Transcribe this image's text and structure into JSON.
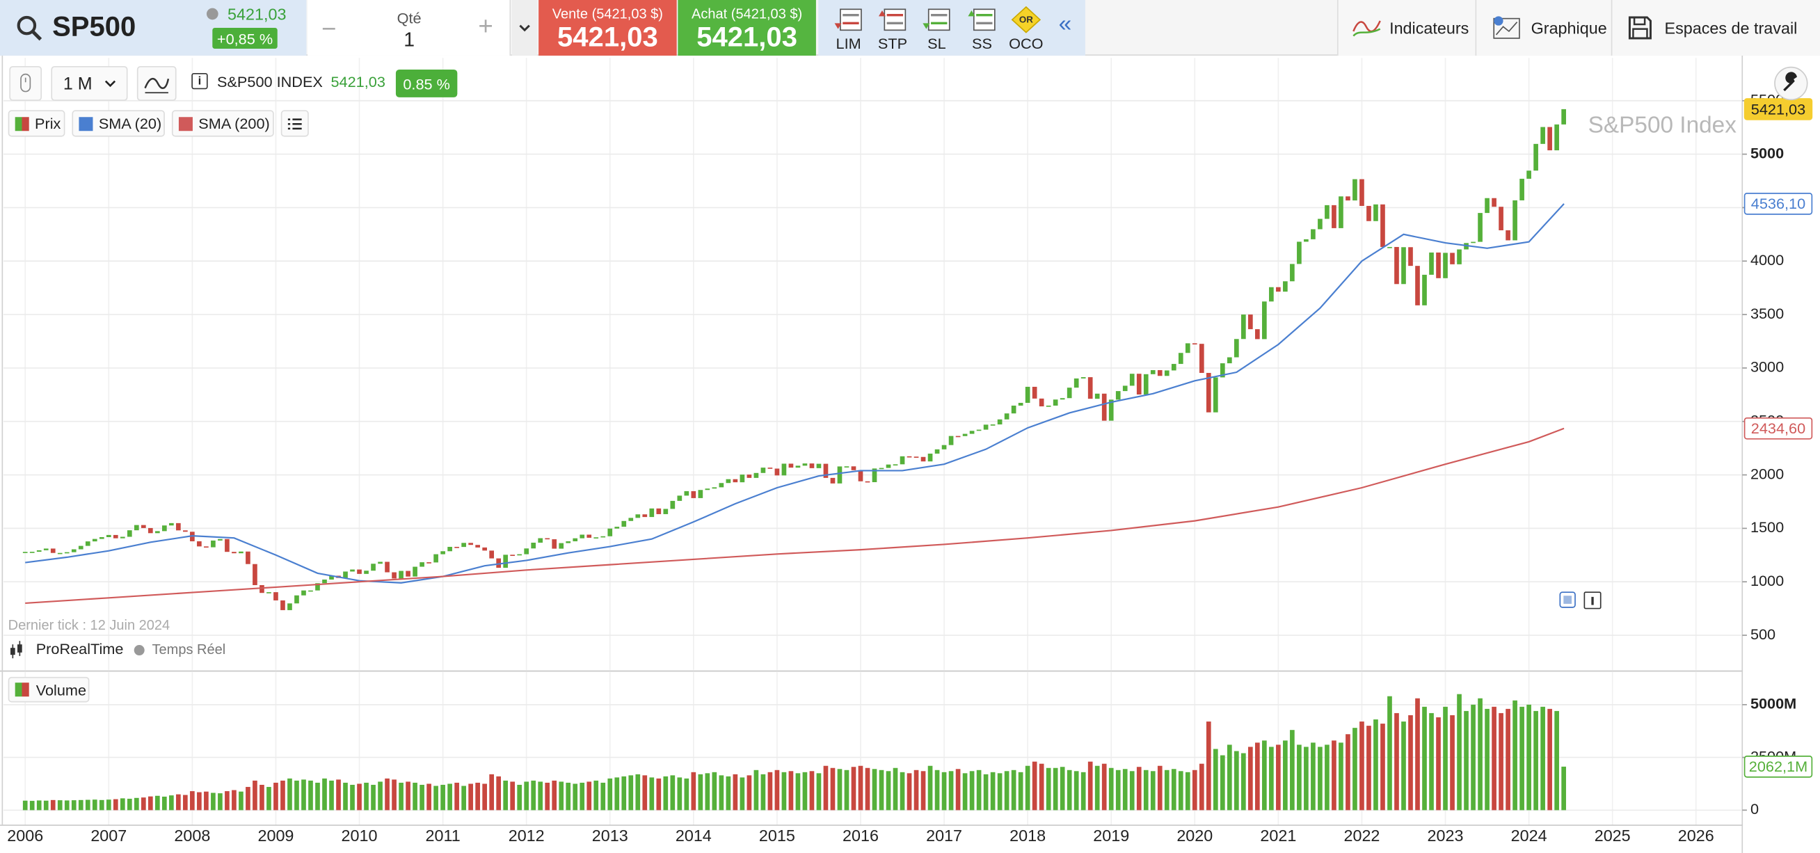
{
  "header": {
    "symbol": "SP500",
    "last": "5421,03",
    "change": "+0,85 %",
    "qty_label": "Qté",
    "qty": "1",
    "sell_label": "Vente (5421,03 $)",
    "sell": "5421,03",
    "buy_label": "Achat (5421,03 $)",
    "buy": "5421,03",
    "orders": [
      "LIM",
      "STP",
      "SL",
      "SS",
      "OCO"
    ],
    "oco_badge": "OR",
    "menu": [
      "Indicateurs",
      "Graphique",
      "Espaces de travail"
    ]
  },
  "toolbar": {
    "period": "1 M",
    "instrument": "S&P500 INDEX",
    "price": "5421,03",
    "change": "0.85 %"
  },
  "status": {
    "last_tick": "Dernier tick : 12 Juin 2024",
    "brand": "ProRealTime",
    "realtime": "Temps Réel"
  },
  "chart_data": [
    {
      "type": "candlestick",
      "title": "S&P500 Index",
      "xlim": [
        2005.74,
        2026.54
      ],
      "ylim": [
        176,
        5900
      ],
      "yticks": [
        500,
        1000,
        1500,
        2000,
        2500,
        3000,
        3500,
        4000,
        4500,
        5000,
        5500
      ],
      "grid": true,
      "up_color": "#55b03a",
      "down_color": "#c8473f",
      "series": [
        {
          "name": "Prix",
          "label_color": "#f5cd2f",
          "last_label": "5421,03",
          "values": [
            1280,
            1281,
            1295,
            1311,
            1270,
            1270,
            1277,
            1304,
            1336,
            1378,
            1401,
            1418,
            1438,
            1407,
            1421,
            1482,
            1531,
            1503,
            1455,
            1474,
            1527,
            1549,
            1481,
            1468,
            1379,
            1331,
            1323,
            1386,
            1400,
            1280,
            1267,
            1283,
            1166,
            969,
            896,
            903,
            826,
            735,
            798,
            873,
            919,
            919,
            987,
            1021,
            1057,
            1036,
            1096,
            1115,
            1074,
            1104,
            1169,
            1187,
            1089,
            1031,
            1102,
            1049,
            1141,
            1183,
            1181,
            1258,
            1286,
            1327,
            1326,
            1364,
            1345,
            1321,
            1292,
            1219,
            1131,
            1253,
            1247,
            1258,
            1312,
            1366,
            1408,
            1398,
            1310,
            1362,
            1379,
            1407,
            1441,
            1412,
            1416,
            1426,
            1498,
            1515,
            1569,
            1598,
            1631,
            1606,
            1686,
            1633,
            1682,
            1757,
            1806,
            1848,
            1783,
            1859,
            1872,
            1884,
            1924,
            1960,
            1931,
            2003,
            1972,
            2018,
            2068,
            2059,
            1995,
            2105,
            2068,
            2086,
            2107,
            2063,
            2104,
            1972,
            1920,
            2079,
            2080,
            2044,
            1940,
            1932,
            2060,
            2065,
            2097,
            2099,
            2174,
            2171,
            2168,
            2126,
            2199,
            2239,
            2279,
            2364,
            2363,
            2384,
            2412,
            2423,
            2470,
            2472,
            2519,
            2575,
            2648,
            2674,
            2824,
            2714,
            2641,
            2648,
            2705,
            2718,
            2816,
            2902,
            2914,
            2712,
            2760,
            2507,
            2704,
            2784,
            2834,
            2946,
            2752,
            2942,
            2980,
            2926,
            2977,
            3038,
            3141,
            3231,
            3226,
            2954,
            2585,
            2912,
            3044,
            3100,
            3271,
            3500,
            3363,
            3270,
            3622,
            3756,
            3714,
            3811,
            3973,
            4181,
            4204,
            4298,
            4395,
            4523,
            4308,
            4605,
            4567,
            4766,
            4516,
            4374,
            4530,
            4132,
            4132,
            3785,
            4130,
            3955,
            3586,
            3872,
            4080,
            3840,
            4077,
            3970,
            4109,
            4169,
            4180,
            4450,
            4589,
            4508,
            4288,
            4194,
            4568,
            4770,
            4846,
            5096,
            5254,
            5036,
            5278,
            5421.03
          ]
        },
        {
          "name": "SMA (20)",
          "color": "#4a7fd0",
          "last_label": "4536,10",
          "x": [
            2006,
            2006.5,
            2007,
            2007.5,
            2008,
            2008.5,
            2009,
            2009.5,
            2010,
            2010.5,
            2011,
            2011.5,
            2012,
            2012.5,
            2013,
            2013.5,
            2014,
            2014.5,
            2015,
            2015.5,
            2016,
            2016.5,
            2017,
            2017.5,
            2018,
            2018.5,
            2019,
            2019.5,
            2020,
            2020.5,
            2021,
            2021.5,
            2022,
            2022.5,
            2023,
            2023.5,
            2024,
            2024.42
          ],
          "values": [
            1180,
            1230,
            1290,
            1370,
            1430,
            1410,
            1250,
            1080,
            1010,
            990,
            1050,
            1150,
            1200,
            1270,
            1330,
            1400,
            1560,
            1730,
            1880,
            1990,
            2040,
            2040,
            2100,
            2240,
            2440,
            2580,
            2680,
            2760,
            2880,
            2960,
            3220,
            3560,
            4000,
            4250,
            4170,
            4120,
            4180,
            4536.1
          ]
        },
        {
          "name": "SMA (200)",
          "color": "#d05a5a",
          "last_label": "2434,60",
          "x": [
            2006,
            2007,
            2008,
            2009,
            2010,
            2011,
            2012,
            2013,
            2014,
            2015,
            2016,
            2017,
            2018,
            2019,
            2020,
            2021,
            2022,
            2023,
            2024,
            2024.42
          ],
          "values": [
            800,
            850,
            900,
            950,
            1000,
            1050,
            1110,
            1160,
            1210,
            1260,
            1300,
            1350,
            1410,
            1480,
            1570,
            1700,
            1880,
            2100,
            2310,
            2434.6
          ]
        }
      ]
    },
    {
      "type": "bar",
      "title": "Volume",
      "xlim": [
        2005.74,
        2026.54
      ],
      "xticks": [
        2006,
        2007,
        2008,
        2009,
        2010,
        2011,
        2012,
        2013,
        2014,
        2015,
        2016,
        2017,
        2018,
        2019,
        2020,
        2021,
        2022,
        2023,
        2024,
        2025,
        2026
      ],
      "ylim": [
        -714,
        6538
      ],
      "yticks": [
        0,
        {
          "value": 2500,
          "label": "2500M"
        },
        {
          "value": 5000,
          "label": "5000M"
        }
      ],
      "grid": true,
      "last_label": "2062,1M",
      "label_color": "#55b03a",
      "values": [
        450,
        440,
        460,
        450,
        480,
        470,
        460,
        470,
        480,
        490,
        500,
        480,
        500,
        520,
        560,
        540,
        580,
        600,
        650,
        680,
        640,
        700,
        750,
        720,
        900,
        850,
        880,
        820,
        800,
        900,
        950,
        880,
        1100,
        1400,
        1200,
        1100,
        1300,
        1400,
        1500,
        1400,
        1450,
        1400,
        1300,
        1500,
        1400,
        1450,
        1300,
        1200,
        1250,
        1300,
        1200,
        1350,
        1500,
        1450,
        1300,
        1350,
        1300,
        1200,
        1250,
        1150,
        1200,
        1250,
        1300,
        1150,
        1250,
        1300,
        1250,
        1700,
        1600,
        1400,
        1350,
        1200,
        1350,
        1400,
        1350,
        1300,
        1400,
        1350,
        1300,
        1250,
        1300,
        1350,
        1400,
        1300,
        1500,
        1550,
        1600,
        1650,
        1700,
        1650,
        1550,
        1500,
        1600,
        1650,
        1550,
        1500,
        1800,
        1700,
        1750,
        1800,
        1650,
        1600,
        1700,
        1550,
        1650,
        1900,
        1700,
        1800,
        1900,
        1800,
        1850,
        1750,
        1800,
        1850,
        1750,
        2100,
        2000,
        1950,
        1900,
        2050,
        2100,
        2000,
        1950,
        1900,
        1850,
        2000,
        1800,
        1750,
        1900,
        1850,
        2100,
        1900,
        1800,
        1850,
        1950,
        1750,
        1850,
        1900,
        1700,
        1800,
        1750,
        1850,
        1900,
        1800,
        2100,
        2300,
        2200,
        2000,
        2000,
        2050,
        1900,
        1850,
        1800,
        2300,
        2100,
        2200,
        2000,
        1900,
        1950,
        1850,
        2050,
        1900,
        1850,
        2100,
        1900,
        1950,
        1850,
        1800,
        1900,
        2200,
        4200,
        2900,
        2600,
        3100,
        2800,
        2700,
        3000,
        3200,
        3300,
        3000,
        3100,
        3300,
        3800,
        3100,
        3000,
        3200,
        3000,
        3100,
        3300,
        3200,
        3600,
        3900,
        4200,
        4000,
        4300,
        4100,
        5400,
        4600,
        4200,
        4500,
        5300,
        4900,
        4600,
        4400,
        4900,
        4500,
        5500,
        4700,
        5000,
        5300,
        4800,
        4900,
        4600,
        4800,
        5200,
        4900,
        5000,
        4700,
        4900,
        4800,
        4700,
        2062.1
      ]
    }
  ]
}
